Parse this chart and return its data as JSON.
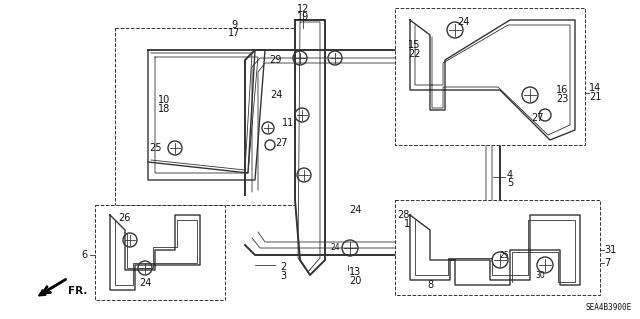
{
  "background_color": "#ffffff",
  "diagram_id": "SEA4B3900E",
  "fig_width": 6.4,
  "fig_height": 3.19,
  "dpi": 100,
  "line_color": "#333333",
  "label_color": "#111111",
  "font_size": 7.0,
  "small_font_size": 5.5,
  "lw_main": 1.0,
  "lw_thin": 0.6,
  "lw_thick": 1.4
}
